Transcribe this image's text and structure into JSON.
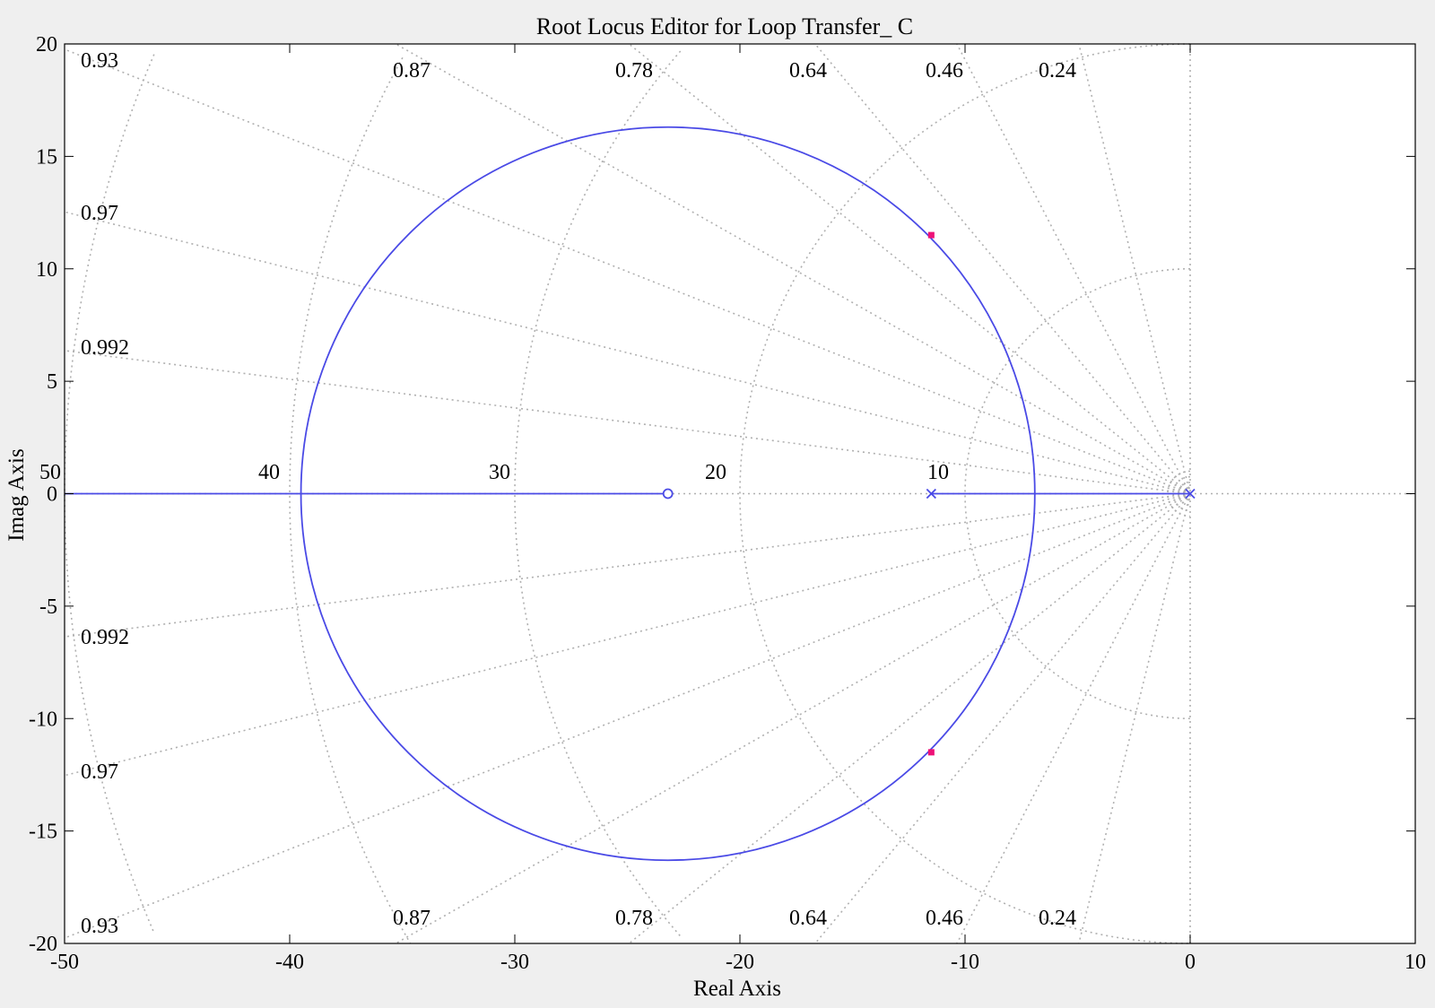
{
  "chart_data": {
    "type": "root-locus",
    "title": "Root Locus Editor for Loop Transfer_ C",
    "xlabel": "Real Axis",
    "ylabel": "Imag Axis",
    "xlim": [
      -50,
      10
    ],
    "ylim": [
      -20,
      20
    ],
    "xticks": [
      -50,
      -40,
      -30,
      -20,
      -10,
      0,
      10
    ],
    "yticks": [
      -20,
      -15,
      -10,
      -5,
      0,
      5,
      10,
      15,
      20
    ],
    "grid": true,
    "grid_style": "dotted",
    "colors": {
      "locus": "#4a4ae6",
      "marker": "#ee1177",
      "grid": "#b0b0b0",
      "axes": "#000000"
    },
    "damping_labels": [
      "0.93",
      "0.87",
      "0.78",
      "0.64",
      "0.46",
      "0.24",
      "0.97",
      "0.992"
    ],
    "damping_values": [
      0.24,
      0.46,
      0.64,
      0.78,
      0.87,
      0.93,
      0.97,
      0.992
    ],
    "frequency_values": [
      10,
      20,
      30,
      40,
      50
    ],
    "frequency_labels": [
      "10",
      "20",
      "30",
      "40",
      "50"
    ],
    "poles": [
      {
        "re": 0,
        "im": 0
      },
      {
        "re": -11.5,
        "im": 0
      }
    ],
    "zeros": [
      {
        "re": -23.2,
        "im": 0
      }
    ],
    "closed_loop_poles": [
      {
        "re": -11.5,
        "im": 11.5
      },
      {
        "re": -11.5,
        "im": -11.5
      }
    ],
    "locus_circle": {
      "center_re": -23.2,
      "center_im": 0,
      "radius": 16.3
    },
    "real_axis_branches": [
      [
        -50,
        -23.2
      ],
      [
        -11.5,
        0
      ]
    ]
  }
}
